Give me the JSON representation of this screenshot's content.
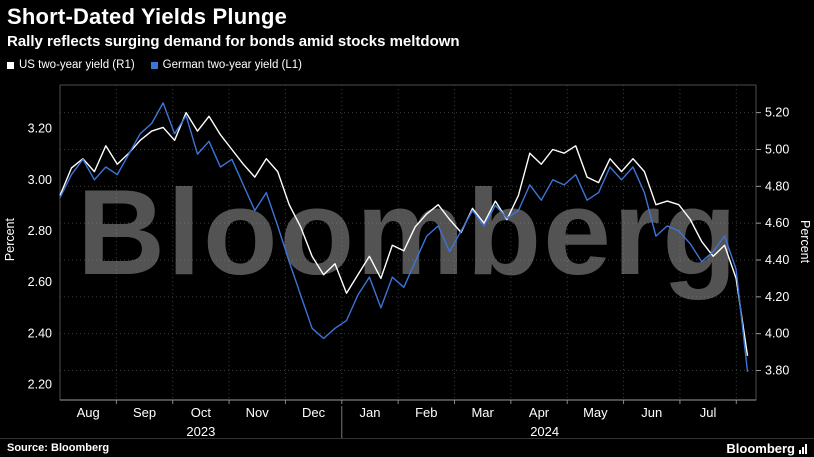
{
  "header": {
    "title": "Short-Dated Yields Plunge",
    "subtitle": "Rally reflects surging demand for bonds amid stocks meltdown"
  },
  "legend": [
    {
      "label": "US two-year yield (R1)",
      "color": "#ffffff"
    },
    {
      "label": "German two-year yield (L1)",
      "color": "#3d74d8"
    }
  ],
  "watermark": "Bloomberg",
  "footer": {
    "source": "Source: Bloomberg",
    "brand": "Bloomberg"
  },
  "chart_data": {
    "type": "line",
    "title": "Short-Dated Yields Plunge",
    "subtitle": "Rally reflects surging demand for bonds amid stocks meltdown",
    "grid": "dotted",
    "legend_position": "top-left",
    "left_axis": {
      "label": "Percent",
      "series": "German two-year yield (L1)",
      "min": 2.14,
      "max": 3.37,
      "ticks": [
        2.2,
        2.4,
        2.6,
        2.8,
        3.0,
        3.2
      ]
    },
    "right_axis": {
      "label": "Percent",
      "series": "US two-year yield (R1)",
      "min": 3.64,
      "max": 5.35,
      "ticks": [
        3.8,
        4.0,
        4.2,
        4.4,
        4.6,
        4.8,
        5.0,
        5.2
      ]
    },
    "x_axis": {
      "months": [
        "Aug",
        "Sep",
        "Oct",
        "Nov",
        "Dec",
        "Jan",
        "Feb",
        "Mar",
        "Apr",
        "May",
        "Jun",
        "Jul"
      ],
      "years": [
        "2023",
        "2024"
      ]
    },
    "series": [
      {
        "name": "US two-year yield (R1)",
        "axis": "right",
        "color": "#ffffff",
        "values": [
          4.75,
          4.9,
          4.95,
          4.88,
          5.02,
          4.92,
          4.98,
          5.05,
          5.1,
          5.12,
          5.05,
          5.2,
          5.1,
          5.18,
          5.08,
          5.0,
          4.92,
          4.85,
          4.95,
          4.88,
          4.7,
          4.58,
          4.42,
          4.32,
          4.38,
          4.22,
          4.32,
          4.42,
          4.3,
          4.48,
          4.45,
          4.58,
          4.65,
          4.7,
          4.62,
          4.55,
          4.68,
          4.6,
          4.72,
          4.62,
          4.75,
          4.98,
          4.92,
          5.0,
          4.98,
          5.02,
          4.85,
          4.82,
          4.95,
          4.88,
          4.95,
          4.88,
          4.7,
          4.72,
          4.7,
          4.62,
          4.5,
          4.42,
          4.48,
          4.3,
          3.88
        ]
      },
      {
        "name": "German two-year yield (L1)",
        "axis": "left",
        "color": "#3d74d8",
        "values": [
          2.93,
          3.02,
          3.08,
          3.0,
          3.05,
          3.02,
          3.1,
          3.18,
          3.22,
          3.3,
          3.18,
          3.25,
          3.1,
          3.15,
          3.05,
          3.08,
          2.98,
          2.88,
          2.95,
          2.82,
          2.68,
          2.55,
          2.42,
          2.38,
          2.42,
          2.45,
          2.55,
          2.62,
          2.5,
          2.62,
          2.58,
          2.68,
          2.78,
          2.82,
          2.72,
          2.8,
          2.88,
          2.82,
          2.9,
          2.85,
          2.88,
          2.98,
          2.92,
          3.0,
          2.98,
          3.02,
          2.92,
          2.95,
          3.05,
          3.0,
          3.05,
          2.95,
          2.78,
          2.82,
          2.8,
          2.75,
          2.68,
          2.72,
          2.78,
          2.65,
          2.25
        ]
      }
    ]
  }
}
